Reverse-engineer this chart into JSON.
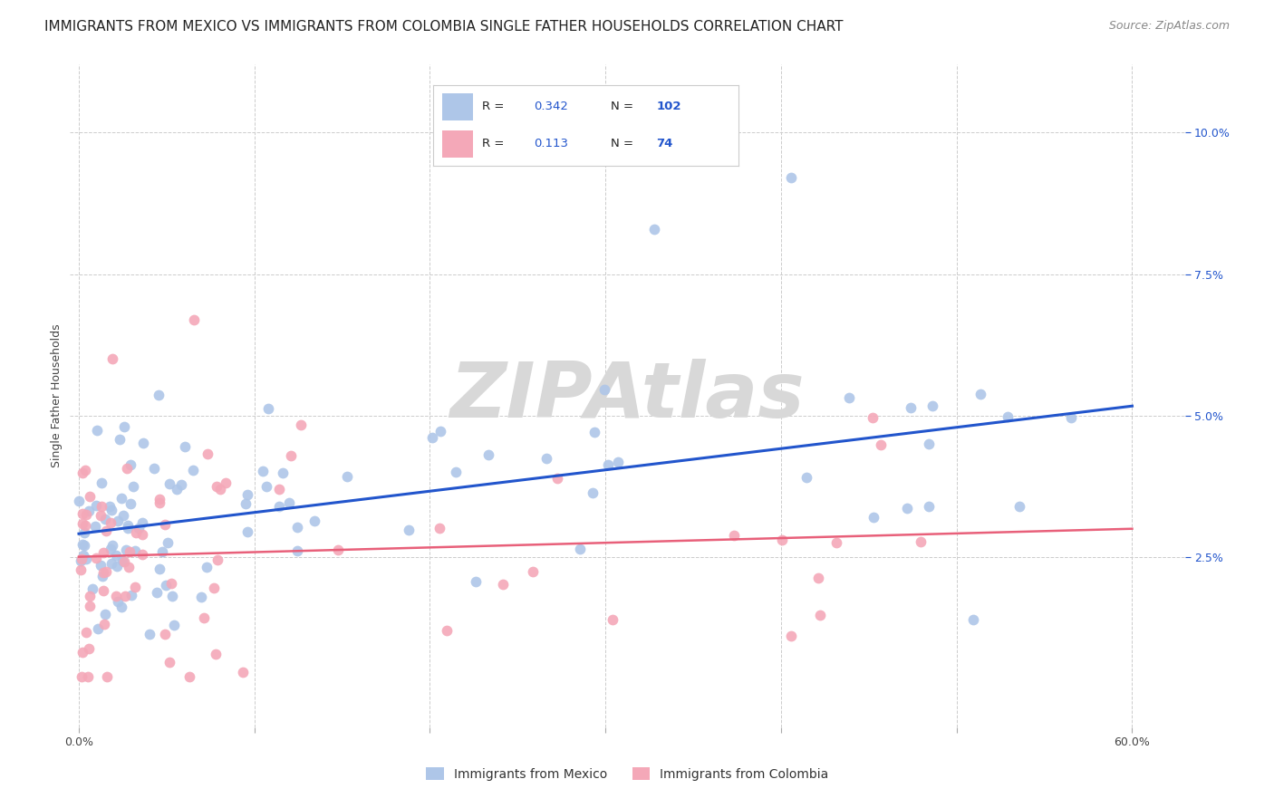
{
  "title": "IMMIGRANTS FROM MEXICO VS IMMIGRANTS FROM COLOMBIA SINGLE FATHER HOUSEHOLDS CORRELATION CHART",
  "source": "Source: ZipAtlas.com",
  "ylabel": "Single Father Households",
  "mexico_R": "0.342",
  "mexico_N": "102",
  "colombia_R": "0.113",
  "colombia_N": "74",
  "mexico_dot_color": "#aec6e8",
  "colombia_dot_color": "#f4a8b8",
  "mexico_line_color": "#2255cc",
  "colombia_line_color": "#e8607a",
  "background_color": "#ffffff",
  "grid_color": "#cccccc",
  "watermark_color": "#d8d8d8",
  "title_fontsize": 11,
  "source_fontsize": 9,
  "axis_label_fontsize": 9,
  "tick_fontsize": 9,
  "legend_fontsize": 10,
  "xlim": [
    -0.005,
    0.63
  ],
  "ylim": [
    -0.005,
    0.112
  ]
}
